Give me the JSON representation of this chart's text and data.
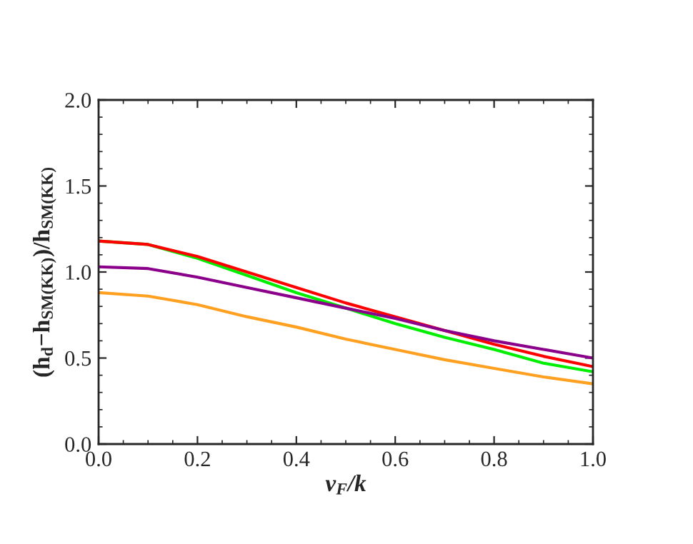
{
  "chart_data": {
    "type": "line",
    "xlabel": "v$_{F}$/k",
    "ylabel": "(h$_{d}$−h$_{SM(KK)}$)/h$_{SM(KK)}$",
    "x": [
      0,
      0.1,
      0.2,
      0.3,
      0.4,
      0.5,
      0.6,
      0.7,
      0.8,
      0.9,
      1.0
    ],
    "series": [
      {
        "color": "#00ee00",
        "values": [
          1.18,
          1.16,
          1.08,
          0.98,
          0.88,
          0.79,
          0.7,
          0.62,
          0.55,
          0.47,
          0.42
        ]
      },
      {
        "color": "#ff0000",
        "values": [
          1.18,
          1.16,
          1.09,
          1.0,
          0.91,
          0.82,
          0.74,
          0.66,
          0.58,
          0.51,
          0.45
        ]
      },
      {
        "color": "#8b008b",
        "values": [
          1.03,
          1.02,
          0.97,
          0.91,
          0.85,
          0.79,
          0.73,
          0.66,
          0.6,
          0.55,
          0.5
        ]
      },
      {
        "color": "#ffa020",
        "values": [
          0.88,
          0.86,
          0.81,
          0.74,
          0.68,
          0.61,
          0.55,
          0.49,
          0.44,
          0.39,
          0.35
        ]
      }
    ],
    "xlim": [
      0,
      1.0
    ],
    "ylim": [
      0,
      2.0
    ],
    "xticks": [
      {
        "value": 0,
        "label": "0.0"
      },
      0.2,
      0.4,
      0.6,
      0.8,
      {
        "value": 1.0,
        "label": "1.0"
      }
    ],
    "yticks": [
      {
        "value": 0,
        "label": "0.0"
      },
      0.5,
      {
        "value": 1.0,
        "label": "1.0"
      },
      1.5,
      {
        "value": 2.0,
        "label": "2.0"
      }
    ],
    "grid": false,
    "marker": "none",
    "line_style": "solid"
  }
}
